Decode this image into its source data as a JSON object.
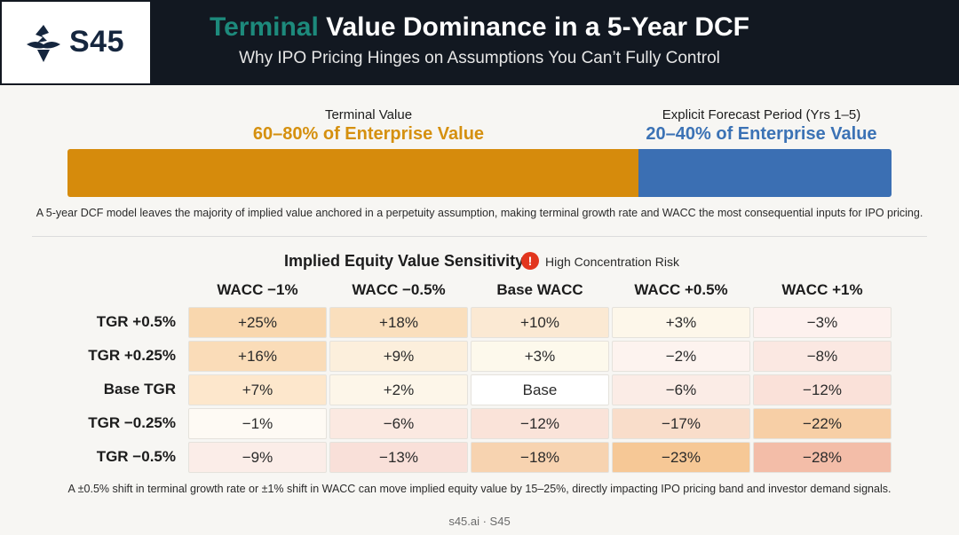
{
  "header": {
    "logo_text": "S45",
    "title_accent": "Terminal",
    "title_rest": " Value Dominance in a 5-Year DCF",
    "subtitle": "Why IPO Pricing Hinges on Assumptions You Can’t Fully Control"
  },
  "split": {
    "terminal_label": "Terminal Value",
    "terminal_value": "60–80% of Enterprise Value",
    "forecast_label": "Explicit Forecast Period (Yrs 1–5)",
    "forecast_value": "20–40% of Enterprise Value",
    "terminal_color": "#d68b0c",
    "forecast_color": "#3b6fb3"
  },
  "note_top": "A 5-year DCF model leaves the majority of implied value anchored in a perpetuity assumption, making terminal growth rate and WACC the most consequential inputs for IPO pricing.",
  "sensitivity": {
    "title": "Implied Equity Value Sensitivity",
    "risk_icon": "!",
    "risk_label": "High Concentration Risk",
    "columns": [
      "WACC −1%",
      "WACC −0.5%",
      "Base WACC",
      "WACC +0.5%",
      "WACC +1%"
    ],
    "rows": [
      "TGR +0.5%",
      "TGR +0.25%",
      "Base TGR",
      "TGR −0.25%",
      "TGR −0.5%"
    ],
    "cells": [
      [
        "+25%",
        "+18%",
        "+10%",
        "+3%",
        "−3%"
      ],
      [
        "+16%",
        "+9%",
        "+3%",
        "−2%",
        "−8%"
      ],
      [
        "+7%",
        "+2%",
        "Base",
        "−6%",
        "−12%"
      ],
      [
        "−1%",
        "−6%",
        "−12%",
        "−17%",
        "−22%"
      ],
      [
        "−9%",
        "−13%",
        "−18%",
        "−23%",
        "−28%"
      ]
    ],
    "cell_colors": [
      [
        "#f9d7ae",
        "#fadfbd",
        "#fbe9d3",
        "#fdf7ea",
        "#fdf1ee"
      ],
      [
        "#fadcb8",
        "#fcefdc",
        "#fdf9ec",
        "#fdf3ef",
        "#fbe8e2"
      ],
      [
        "#fde7cc",
        "#fdf6e9",
        "#ffffff",
        "#fbece6",
        "#fae1d9"
      ],
      [
        "#fefaf4",
        "#fbe9e1",
        "#fae3d9",
        "#f9ddca",
        "#f7cfa6"
      ],
      [
        "#fbede8",
        "#f9e0d9",
        "#f7d3b0",
        "#f6c896",
        "#f3bda8"
      ]
    ]
  },
  "note_bottom": "A ±0.5% shift in terminal growth rate or ±1% shift in WACC can move implied equity value by 15–25%, directly impacting IPO pricing band and investor demand signals.",
  "footer": "s45.ai · S45"
}
